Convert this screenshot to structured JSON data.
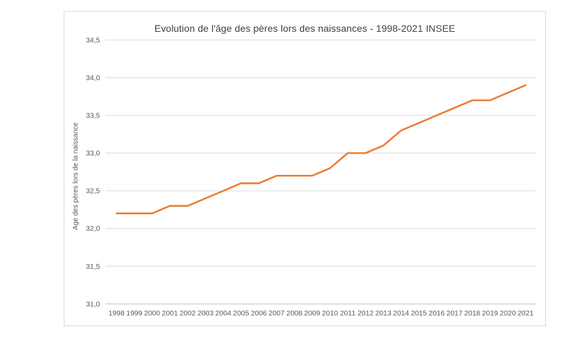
{
  "chart": {
    "title": "Evolution de l'âge des pères lors des naissances - 1998-2021 INSEE",
    "y_axis_title": "Age des pères lors de la naissance",
    "colors": {
      "line": "#ED7D31",
      "grid": "#D9D9D9",
      "axis": "#BFBFBF",
      "border": "#D9D9D9",
      "title_text": "#404040",
      "tick_text": "#595959",
      "background": "#FFFFFF"
    }
  },
  "chart_data": {
    "type": "line",
    "title": "Evolution de l'âge des pères lors des naissances - 1998-2021 INSEE",
    "xlabel": "",
    "ylabel": "Age des pères lors de la naissance",
    "x": [
      "1998",
      "1999",
      "2000",
      "2001",
      "2002",
      "2003",
      "2004",
      "2005",
      "2006",
      "2007",
      "2008",
      "2009",
      "2010",
      "2011",
      "2012",
      "2013",
      "2014",
      "2015",
      "2016",
      "2017",
      "2018",
      "2019",
      "2020",
      "2021"
    ],
    "series": [
      {
        "name": "Age des pères lors de la naissance",
        "values": [
          32.2,
          32.2,
          32.2,
          32.3,
          32.3,
          32.4,
          32.5,
          32.6,
          32.6,
          32.7,
          32.7,
          32.7,
          32.8,
          33.0,
          33.0,
          33.1,
          33.3,
          33.4,
          33.5,
          33.6,
          33.7,
          33.7,
          33.8,
          33.9
        ]
      }
    ],
    "ylim": [
      31.0,
      34.5
    ],
    "ytick_step": 0.5,
    "ytick_labels": [
      "31,0",
      "31,5",
      "32,0",
      "32,5",
      "33,0",
      "33,5",
      "34,0",
      "34,5"
    ],
    "grid": true,
    "legend": false
  }
}
